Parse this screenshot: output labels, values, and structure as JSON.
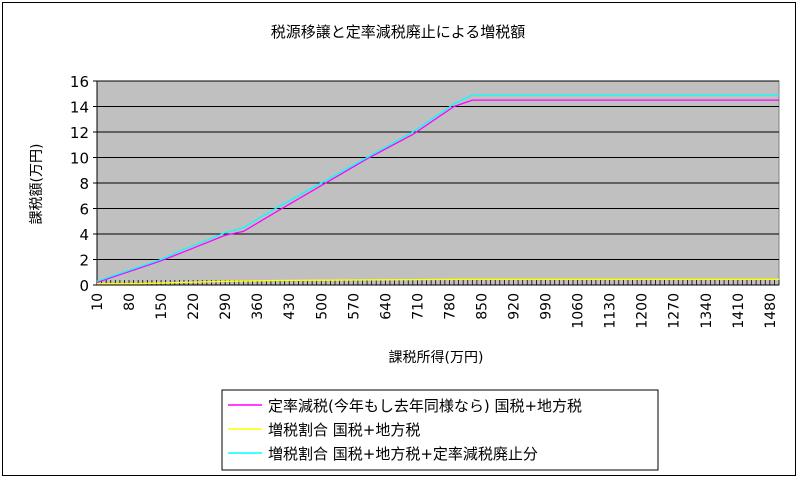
{
  "chart_data": {
    "type": "line",
    "title": "税源移譲と定率減税廃止による増税額",
    "xlabel": "課税所得(万円)",
    "ylabel": "課税額(万円)",
    "xlim": [
      10,
      1500
    ],
    "ylim": [
      0,
      16
    ],
    "yticks": [
      "0",
      "2",
      "4",
      "6",
      "8",
      "10",
      "12",
      "14",
      "16"
    ],
    "xticks": [
      "10",
      "80",
      "150",
      "220",
      "290",
      "360",
      "430",
      "500",
      "570",
      "640",
      "710",
      "780",
      "850",
      "920",
      "990",
      "1060",
      "1130",
      "1200",
      "1270",
      "1340",
      "1410",
      "1480"
    ],
    "grid": true,
    "legend_position": "bottom",
    "series": [
      {
        "name": "定率減税(今年もし去年同様なら) 国税+地方税",
        "color": "#ff00ff",
        "x": [
          10,
          150,
          200,
          290,
          330,
          400,
          500,
          600,
          700,
          790,
          830,
          1500
        ],
        "y": [
          0.2,
          1.9,
          2.6,
          3.9,
          4.2,
          5.7,
          7.8,
          9.9,
          11.8,
          14.0,
          14.5,
          14.5
        ]
      },
      {
        "name": "増税割合 国税+地方税",
        "color": "#ffff00",
        "x": [
          10,
          100,
          200,
          300,
          400,
          500,
          600,
          700,
          800,
          1500
        ],
        "y": [
          0.1,
          0.1,
          0.2,
          0.3,
          0.35,
          0.38,
          0.4,
          0.42,
          0.45,
          0.45
        ]
      },
      {
        "name": "増税割合 国税+地方税+定率減税廃止分",
        "color": "#00ffff",
        "x": [
          10,
          150,
          200,
          290,
          330,
          400,
          500,
          600,
          700,
          790,
          830,
          1500
        ],
        "y": [
          0.3,
          2.0,
          2.8,
          4.1,
          4.5,
          6.0,
          8.0,
          10.0,
          12.0,
          14.2,
          14.9,
          14.9
        ]
      }
    ]
  }
}
